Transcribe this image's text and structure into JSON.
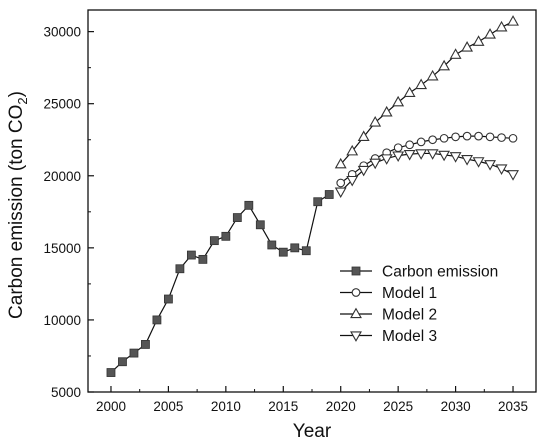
{
  "chart_data": {
    "type": "line",
    "xlabel": "Year",
    "ylabel": "Carbon emission (ton CO",
    "ylabel_sub": "2",
    "ylabel_close": ")",
    "xlim": [
      1998,
      2037
    ],
    "ylim": [
      5000,
      31500
    ],
    "xticks": [
      2000,
      2005,
      2010,
      2015,
      2020,
      2025,
      2030,
      2035
    ],
    "yticks": [
      5000,
      10000,
      15000,
      20000,
      25000,
      30000
    ],
    "legend_position": "bottom-right",
    "series": [
      {
        "name": "Carbon emission",
        "marker": "square",
        "x": [
          2000,
          2001,
          2002,
          2003,
          2004,
          2005,
          2006,
          2007,
          2008,
          2009,
          2010,
          2011,
          2012,
          2013,
          2014,
          2015,
          2016,
          2017,
          2018,
          2019
        ],
        "y": [
          6350,
          7100,
          7700,
          8300,
          10000,
          11450,
          13550,
          14500,
          14200,
          15500,
          15800,
          17100,
          17950,
          16600,
          15200,
          14700,
          15000,
          14800,
          18200,
          18700
        ]
      },
      {
        "name": "Model 1",
        "marker": "circle",
        "x": [
          2020,
          2021,
          2022,
          2023,
          2024,
          2025,
          2026,
          2027,
          2028,
          2029,
          2030,
          2031,
          2032,
          2033,
          2034,
          2035
        ],
        "y": [
          19500,
          20100,
          20700,
          21200,
          21600,
          21950,
          22150,
          22350,
          22500,
          22600,
          22700,
          22750,
          22750,
          22700,
          22650,
          22600
        ]
      },
      {
        "name": "Model 2",
        "marker": "triangle-up",
        "x": [
          2020,
          2021,
          2022,
          2023,
          2024,
          2025,
          2026,
          2027,
          2028,
          2029,
          2030,
          2031,
          2032,
          2033,
          2034,
          2035
        ],
        "y": [
          20800,
          21700,
          22700,
          23700,
          24400,
          25100,
          25750,
          26300,
          26900,
          27600,
          28400,
          28900,
          29300,
          29800,
          30300,
          30700
        ]
      },
      {
        "name": "Model 3",
        "marker": "triangle-down",
        "x": [
          2020,
          2021,
          2022,
          2023,
          2024,
          2025,
          2026,
          2027,
          2028,
          2029,
          2030,
          2031,
          2032,
          2033,
          2034,
          2035
        ],
        "y": [
          18900,
          19700,
          20400,
          20900,
          21200,
          21400,
          21500,
          21550,
          21550,
          21450,
          21350,
          21150,
          21000,
          20800,
          20500,
          20100
        ]
      }
    ]
  }
}
